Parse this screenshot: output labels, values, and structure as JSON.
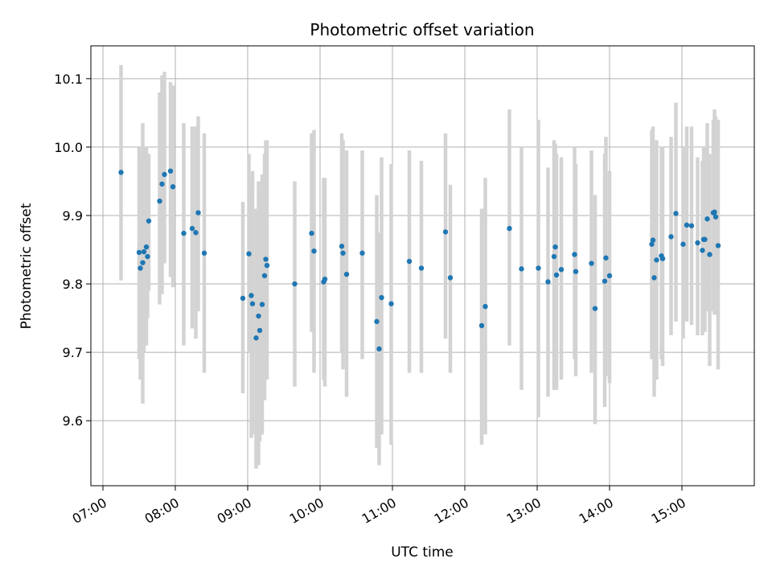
{
  "chart_data": {
    "type": "scatter",
    "title": "Photometric offset variation",
    "xlabel": "UTC time",
    "ylabel": "Photometric offset",
    "x_type": "time",
    "xlim": [
      "06:50",
      "16:00"
    ],
    "ylim": [
      9.505,
      10.148
    ],
    "grid": true,
    "x_ticks": [
      "07:00",
      "08:00",
      "09:00",
      "10:00",
      "11:00",
      "12:00",
      "13:00",
      "14:00",
      "15:00"
    ],
    "y_ticks": [
      9.6,
      9.7,
      9.8,
      9.9,
      10.0,
      10.1
    ],
    "y_tick_labels": [
      "9.6",
      "9.7",
      "9.8",
      "9.9",
      "10.0",
      "10.1"
    ],
    "colors": {
      "point": "#1f77b4",
      "errorbar": "#d3d3d3",
      "grid": "#b0b0b0"
    },
    "series": [
      {
        "x": [
          "07:15",
          "07:30",
          "07:31",
          "07:33",
          "07:34",
          "07:36",
          "07:37",
          "07:38",
          "07:47",
          "07:49",
          "07:51",
          "07:56",
          "07:58",
          "08:07",
          "08:14",
          "08:17",
          "08:19",
          "08:24",
          "08:56",
          "09:01",
          "09:03",
          "09:04",
          "09:07",
          "09:09",
          "09:10",
          "09:12",
          "09:14",
          "09:15",
          "09:16",
          "09:39",
          "09:53",
          "09:55",
          "10:03",
          "10:04",
          "10:18",
          "10:19",
          "10:22",
          "10:35",
          "10:47",
          "10:49",
          "10:51",
          "10:59",
          "11:14",
          "11:24",
          "11:44",
          "11:48",
          "12:14",
          "12:17",
          "12:37",
          "12:47",
          "13:01",
          "13:09",
          "13:14",
          "13:15",
          "13:16",
          "13:20",
          "13:31",
          "13:32",
          "13:45",
          "13:48",
          "13:56",
          "13:57",
          "14:00",
          "14:35",
          "14:36",
          "14:37",
          "14:39",
          "14:43",
          "14:44",
          "14:51",
          "14:55",
          "15:01",
          "15:04",
          "15:08",
          "15:13",
          "15:17",
          "15:18",
          "15:19",
          "15:21",
          "15:23",
          "15:26",
          "15:27",
          "15:28",
          "15:30"
        ],
        "y": [
          9.963,
          9.846,
          9.823,
          9.831,
          9.847,
          9.854,
          9.84,
          9.892,
          9.921,
          9.946,
          9.96,
          9.965,
          9.942,
          9.874,
          9.881,
          9.875,
          9.904,
          9.845,
          9.779,
          9.844,
          9.783,
          9.771,
          9.721,
          9.753,
          9.732,
          9.77,
          9.812,
          9.836,
          9.827,
          9.8,
          9.874,
          9.848,
          9.803,
          9.807,
          9.855,
          9.845,
          9.814,
          9.845,
          9.745,
          9.705,
          9.78,
          9.771,
          9.833,
          9.823,
          9.876,
          9.809,
          9.739,
          9.767,
          9.881,
          9.822,
          9.823,
          9.803,
          9.84,
          9.854,
          9.813,
          9.821,
          9.843,
          9.818,
          9.83,
          9.764,
          9.804,
          9.838,
          9.812,
          9.858,
          9.864,
          9.809,
          9.835,
          9.841,
          9.837,
          9.869,
          9.903,
          9.858,
          9.886,
          9.885,
          9.86,
          9.849,
          9.865,
          9.865,
          9.895,
          9.843,
          9.904,
          9.905,
          9.898,
          9.856
        ],
        "y_lo": [
          9.805,
          9.69,
          9.66,
          9.625,
          9.7,
          9.71,
          9.75,
          9.79,
          9.77,
          9.785,
          9.83,
          9.81,
          9.795,
          9.71,
          9.735,
          9.72,
          9.76,
          9.67,
          9.64,
          9.7,
          9.575,
          9.58,
          9.53,
          9.535,
          9.57,
          9.58,
          9.63,
          9.66,
          9.66,
          9.65,
          9.73,
          9.67,
          9.66,
          9.65,
          9.7,
          9.675,
          9.635,
          9.69,
          9.56,
          9.535,
          9.58,
          9.565,
          9.67,
          9.67,
          9.72,
          9.67,
          9.565,
          9.58,
          9.71,
          9.645,
          9.605,
          9.635,
          9.645,
          9.69,
          9.645,
          9.66,
          9.69,
          9.665,
          9.67,
          9.595,
          9.62,
          9.665,
          9.655,
          9.69,
          9.7,
          9.635,
          9.66,
          9.69,
          9.68,
          9.725,
          9.745,
          9.72,
          9.745,
          9.74,
          9.725,
          9.725,
          9.73,
          9.73,
          9.76,
          9.68,
          9.76,
          9.755,
          9.755,
          9.675
        ],
        "y_hi": [
          10.12,
          10.0,
          9.985,
          10.035,
          10.0,
          10.0,
          9.98,
          9.99,
          10.08,
          10.105,
          10.11,
          10.095,
          10.09,
          10.035,
          10.03,
          10.03,
          10.045,
          10.02,
          9.92,
          9.99,
          9.94,
          9.965,
          9.91,
          9.95,
          9.935,
          9.96,
          9.99,
          10.01,
          10.01,
          9.95,
          10.02,
          10.025,
          9.955,
          9.955,
          10.02,
          10.01,
          9.995,
          9.995,
          9.93,
          9.875,
          9.985,
          9.975,
          9.995,
          9.98,
          10.02,
          9.945,
          9.91,
          9.955,
          10.055,
          10.0,
          10.04,
          9.97,
          10.01,
          10.005,
          9.99,
          9.985,
          10.0,
          9.975,
          9.995,
          9.93,
          9.99,
          10.015,
          9.965,
          10.025,
          10.03,
          9.985,
          10.01,
          10.0,
          10.0,
          10.015,
          10.065,
          10.0,
          10.03,
          10.03,
          9.985,
          9.98,
          10.0,
          10.0,
          10.035,
          9.99,
          10.04,
          10.055,
          10.045,
          10.04
        ]
      }
    ]
  }
}
